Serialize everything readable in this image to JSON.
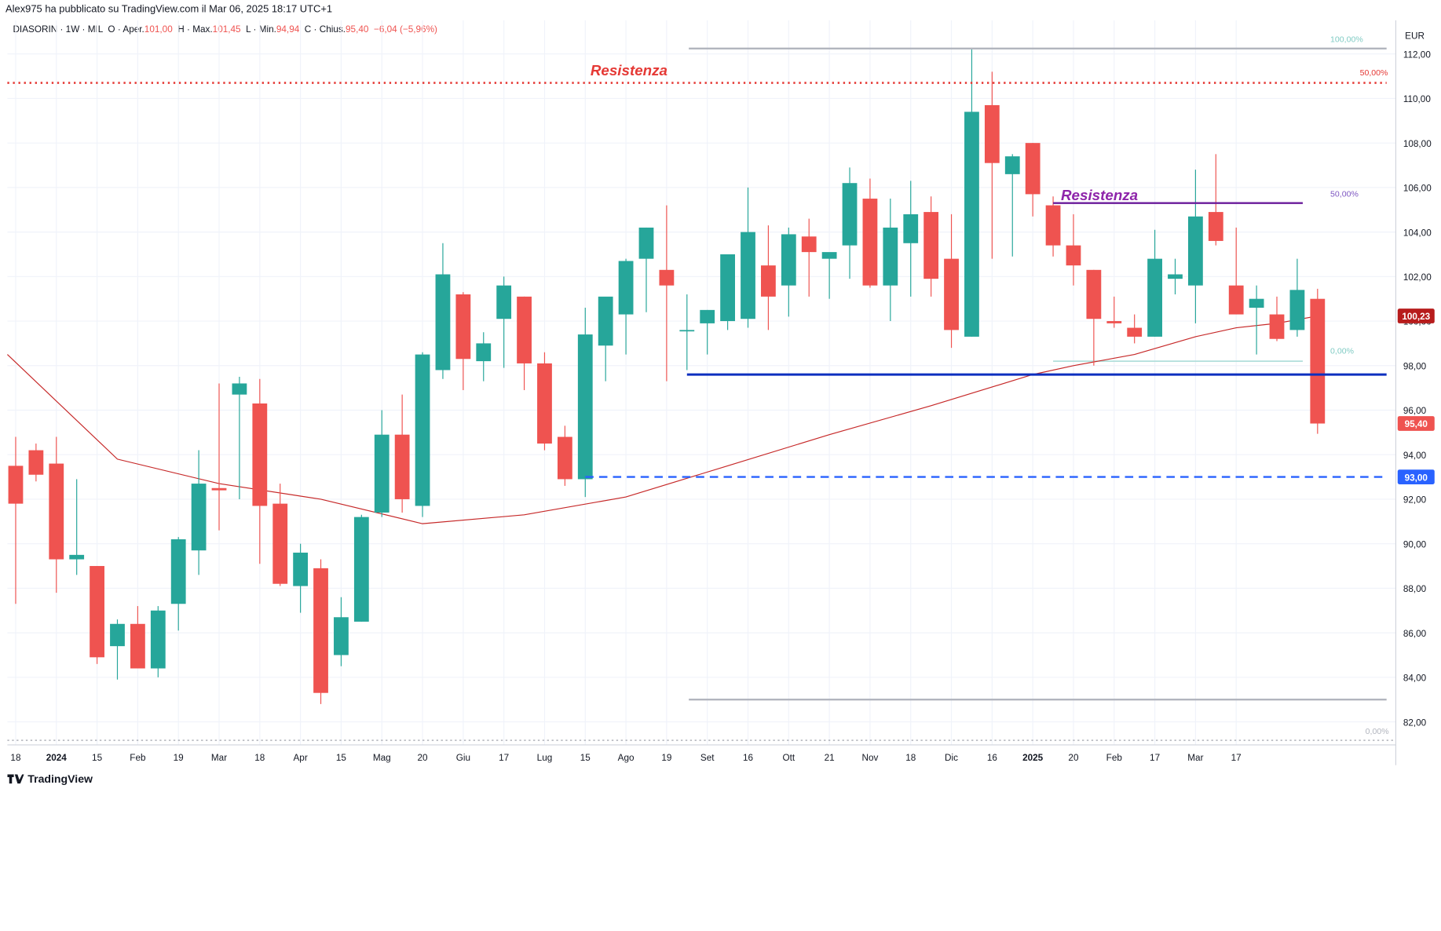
{
  "header": {
    "published": "Alex975 ha pubblicato su TradingView.com il Mar 06, 2025 18:17 UTC+1"
  },
  "legend": {
    "symbol": "DIASORIN · 1W · MIL",
    "open_label": "O · Aper.",
    "open": "101,00",
    "high_label": "H · Max.",
    "high": "101,45",
    "low_label": "L · Min.",
    "low": "94,94",
    "close_label": "C · Chius.",
    "close": "95,40",
    "change": "−6,04 (−5,96%)"
  },
  "footer": {
    "brand": "TradingView",
    "logo": "tradingview-logo-icon"
  },
  "colors": {
    "up": "#26a69a",
    "down": "#ef5350",
    "ma": "#c62828",
    "resistance_red": "#e53935",
    "resistance_purple": "#6a1b9a",
    "support_blue": "#0d2fbf",
    "dashed_blue": "#2962ff",
    "grid": "#f0f3fa",
    "fib": "#b2dfdb"
  },
  "chart_data": {
    "type": "candlestick",
    "currency": "EUR",
    "ylim": [
      81,
      113
    ],
    "y_ticks": [
      "82,00",
      "84,00",
      "86,00",
      "88,00",
      "90,00",
      "92,00",
      "94,00",
      "96,00",
      "98,00",
      "100,00",
      "102,00",
      "104,00",
      "106,00",
      "108,00",
      "110,00",
      "112,00"
    ],
    "x_ticks": [
      "18",
      "2024",
      "15",
      "Feb",
      "19",
      "Mar",
      "18",
      "Apr",
      "15",
      "Mag",
      "20",
      "Giu",
      "17",
      "Lug",
      "15",
      "Ago",
      "19",
      "Set",
      "16",
      "Ott",
      "21",
      "Nov",
      "18",
      "Dic",
      "16",
      "2025",
      "20",
      "Feb",
      "17",
      "Mar",
      "17"
    ],
    "x_tick_index": [
      0,
      2,
      4,
      6,
      8,
      10,
      12,
      14,
      16,
      18,
      20,
      22,
      24,
      26,
      28,
      30,
      32,
      34,
      36,
      38,
      40,
      42,
      44,
      46,
      48,
      50,
      52,
      54,
      56,
      58,
      60
    ],
    "candles": [
      {
        "o": 93.5,
        "h": 94.8,
        "l": 87.3,
        "c": 91.8
      },
      {
        "o": 94.2,
        "h": 94.5,
        "l": 92.8,
        "c": 93.1
      },
      {
        "o": 93.6,
        "h": 94.8,
        "l": 87.8,
        "c": 89.3
      },
      {
        "o": 89.3,
        "h": 92.9,
        "l": 88.6,
        "c": 89.5
      },
      {
        "o": 89.0,
        "h": 89.0,
        "l": 84.6,
        "c": 84.9
      },
      {
        "o": 85.4,
        "h": 86.6,
        "l": 83.9,
        "c": 86.4
      },
      {
        "o": 86.4,
        "h": 87.2,
        "l": 84.4,
        "c": 84.4
      },
      {
        "o": 84.4,
        "h": 87.2,
        "l": 84.0,
        "c": 87.0
      },
      {
        "o": 87.3,
        "h": 90.3,
        "l": 86.1,
        "c": 90.2
      },
      {
        "o": 89.7,
        "h": 94.2,
        "l": 88.6,
        "c": 92.7
      },
      {
        "o": 92.5,
        "h": 97.2,
        "l": 90.6,
        "c": 92.4
      },
      {
        "o": 96.7,
        "h": 97.5,
        "l": 92.0,
        "c": 97.2
      },
      {
        "o": 96.3,
        "h": 97.4,
        "l": 89.1,
        "c": 91.7
      },
      {
        "o": 91.8,
        "h": 92.7,
        "l": 88.1,
        "c": 88.2
      },
      {
        "o": 88.1,
        "h": 90.0,
        "l": 86.9,
        "c": 89.6
      },
      {
        "o": 88.9,
        "h": 89.3,
        "l": 82.8,
        "c": 83.3
      },
      {
        "o": 85.0,
        "h": 87.6,
        "l": 84.5,
        "c": 86.7
      },
      {
        "o": 86.5,
        "h": 91.3,
        "l": 86.5,
        "c": 91.2
      },
      {
        "o": 91.4,
        "h": 96.0,
        "l": 91.2,
        "c": 94.9
      },
      {
        "o": 94.9,
        "h": 96.7,
        "l": 91.4,
        "c": 92.0
      },
      {
        "o": 91.7,
        "h": 98.6,
        "l": 91.2,
        "c": 98.5
      },
      {
        "o": 97.8,
        "h": 103.5,
        "l": 97.4,
        "c": 102.1
      },
      {
        "o": 101.2,
        "h": 101.3,
        "l": 96.9,
        "c": 98.3
      },
      {
        "o": 98.2,
        "h": 99.5,
        "l": 97.3,
        "c": 99.0
      },
      {
        "o": 100.1,
        "h": 102.0,
        "l": 97.9,
        "c": 101.6
      },
      {
        "o": 101.1,
        "h": 101.1,
        "l": 96.9,
        "c": 98.1
      },
      {
        "o": 98.1,
        "h": 98.6,
        "l": 94.2,
        "c": 94.5
      },
      {
        "o": 94.8,
        "h": 95.3,
        "l": 92.6,
        "c": 92.9
      },
      {
        "o": 92.9,
        "h": 100.6,
        "l": 92.1,
        "c": 99.4
      },
      {
        "o": 98.9,
        "h": 101.0,
        "l": 97.3,
        "c": 101.1
      },
      {
        "o": 100.3,
        "h": 102.8,
        "l": 98.5,
        "c": 102.7
      },
      {
        "o": 102.8,
        "h": 104.2,
        "l": 100.4,
        "c": 104.2
      },
      {
        "o": 102.3,
        "h": 105.2,
        "l": 97.3,
        "c": 101.6
      },
      {
        "o": 99.6,
        "h": 101.2,
        "l": 97.8,
        "c": 99.6
      },
      {
        "o": 99.9,
        "h": 100.5,
        "l": 98.5,
        "c": 100.5
      },
      {
        "o": 100.0,
        "h": 102.8,
        "l": 99.6,
        "c": 103.0
      },
      {
        "o": 100.1,
        "h": 106.0,
        "l": 99.7,
        "c": 104.0
      },
      {
        "o": 102.5,
        "h": 104.3,
        "l": 99.6,
        "c": 101.1
      },
      {
        "o": 101.6,
        "h": 104.2,
        "l": 100.2,
        "c": 103.9
      },
      {
        "o": 103.8,
        "h": 104.6,
        "l": 101.1,
        "c": 103.1
      },
      {
        "o": 102.8,
        "h": 103.0,
        "l": 101.0,
        "c": 103.1
      },
      {
        "o": 103.4,
        "h": 106.9,
        "l": 101.9,
        "c": 106.2
      },
      {
        "o": 105.5,
        "h": 106.4,
        "l": 101.5,
        "c": 101.6
      },
      {
        "o": 101.6,
        "h": 105.5,
        "l": 100.0,
        "c": 104.2
      },
      {
        "o": 103.5,
        "h": 106.3,
        "l": 101.1,
        "c": 104.8
      },
      {
        "o": 104.9,
        "h": 105.6,
        "l": 101.1,
        "c": 101.9
      },
      {
        "o": 102.8,
        "h": 104.8,
        "l": 98.8,
        "c": 99.6
      },
      {
        "o": 99.3,
        "h": 112.2,
        "l": 99.3,
        "c": 109.4
      },
      {
        "o": 109.7,
        "h": 111.2,
        "l": 102.8,
        "c": 107.1
      },
      {
        "o": 106.6,
        "h": 107.5,
        "l": 102.9,
        "c": 107.4
      },
      {
        "o": 108.0,
        "h": 108.0,
        "l": 104.7,
        "c": 105.7
      },
      {
        "o": 105.2,
        "h": 105.6,
        "l": 102.9,
        "c": 103.4
      },
      {
        "o": 103.4,
        "h": 104.8,
        "l": 101.6,
        "c": 102.5
      },
      {
        "o": 102.3,
        "h": 102.3,
        "l": 98.0,
        "c": 100.1
      },
      {
        "o": 100.0,
        "h": 101.1,
        "l": 99.7,
        "c": 99.9
      },
      {
        "o": 99.7,
        "h": 100.3,
        "l": 99.0,
        "c": 99.3
      },
      {
        "o": 99.3,
        "h": 104.1,
        "l": 99.3,
        "c": 102.8
      },
      {
        "o": 101.9,
        "h": 102.8,
        "l": 101.2,
        "c": 102.1
      },
      {
        "o": 101.6,
        "h": 106.8,
        "l": 99.9,
        "c": 104.7
      },
      {
        "o": 104.9,
        "h": 107.5,
        "l": 103.4,
        "c": 103.6
      },
      {
        "o": 101.6,
        "h": 104.2,
        "l": 100.3,
        "c": 100.3
      },
      {
        "o": 100.6,
        "h": 101.6,
        "l": 98.5,
        "c": 101.0
      },
      {
        "o": 100.3,
        "h": 101.1,
        "l": 99.1,
        "c": 99.2
      },
      {
        "o": 99.6,
        "h": 102.8,
        "l": 99.3,
        "c": 101.4
      },
      {
        "o": 101.0,
        "h": 101.45,
        "l": 94.94,
        "c": 95.4
      }
    ],
    "moving_average": {
      "indices": [
        0,
        5,
        10,
        15,
        20,
        25,
        30,
        35,
        40,
        45,
        50,
        52,
        55,
        58,
        60,
        62,
        64
      ],
      "values": [
        98.5,
        93.8,
        92.7,
        92.0,
        90.9,
        91.3,
        92.1,
        93.5,
        94.9,
        96.2,
        97.6,
        98.0,
        98.5,
        99.3,
        99.7,
        99.9,
        100.23
      ]
    },
    "levels": [
      {
        "label": "Resistenza",
        "value": 110.7,
        "style": "red-dotted",
        "start_index": 0
      },
      {
        "label": "Resistenza",
        "value": 105.3,
        "style": "purple-solid",
        "start_index": 51,
        "end_index": 63
      },
      {
        "value": 97.6,
        "style": "blue-solid",
        "start_index": 33
      },
      {
        "value": 93.0,
        "style": "blue-dashed",
        "start_index": 28
      }
    ],
    "fib_top": {
      "value": 112.2,
      "label": "100,00%",
      "start_index": 33
    },
    "fib_bottom": {
      "value": 83.0,
      "label": "",
      "start_index": 33
    },
    "fib_small_50": {
      "value": 110.7,
      "label": "50,00%"
    },
    "fib_small_purple_50": {
      "value": 105.3,
      "label": "50,00%"
    },
    "fib_small_0": {
      "value": 98.2,
      "label": "0,00%",
      "start_index": 51,
      "end_index": 63
    },
    "fib_bottom_0_label": "0,00%",
    "price_tags": [
      {
        "value": 100.23,
        "label": "100,23",
        "color": "#b71c1c"
      },
      {
        "value": 95.4,
        "label": "95,40",
        "color": "#ef5350"
      },
      {
        "value": 93.0,
        "label": "93,00",
        "color": "#2962ff"
      }
    ]
  }
}
